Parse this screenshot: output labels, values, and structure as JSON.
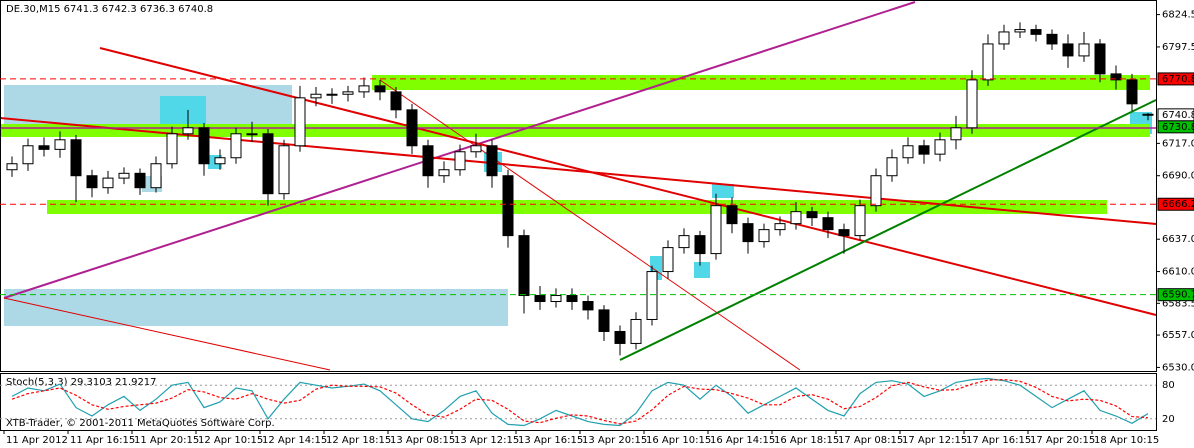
{
  "chart_data": {
    "type": "candlestick",
    "title": "DE.30,M15 6741.3 6742.3 6736.3 6740.8",
    "footer": "XTB-Trader, © 2001-2011 MetaQuotes Software Corp.",
    "open": [
      6695,
      6700,
      6715,
      6712,
      6720,
      6690,
      6680,
      6688,
      6692,
      6680,
      6700,
      6725,
      6730,
      6700,
      6705,
      6725,
      6725,
      6675,
      6715,
      6755,
      6758,
      6758,
      6760,
      6765,
      6760,
      6745,
      6715,
      6690,
      6695,
      6710,
      6715,
      6690,
      6640,
      6590,
      6585,
      6590,
      6585,
      6578,
      6560,
      6550,
      6570,
      6610,
      6630,
      6640,
      6625,
      6665,
      6650,
      6635,
      6645,
      6650,
      6660,
      6655,
      6645,
      6640,
      6665,
      6690,
      6705,
      6715,
      6708,
      6720,
      6730,
      6770,
      6800,
      6810,
      6812,
      6808,
      6800,
      6790,
      6800,
      6775,
      6770,
      6741.3
    ],
    "high": [
      6706,
      6721,
      6722,
      6727,
      6724,
      6695,
      6694,
      6697,
      6696,
      6706,
      6731,
      6745,
      6734,
      6712,
      6730,
      6735,
      6729,
      6720,
      6765,
      6764,
      6763,
      6765,
      6772,
      6770,
      6764,
      6750,
      6720,
      6702,
      6716,
      6725,
      6720,
      6695,
      6645,
      6598,
      6596,
      6596,
      6590,
      6582,
      6565,
      6576,
      6615,
      6636,
      6646,
      6644,
      6675,
      6672,
      6655,
      6650,
      6656,
      6668,
      6664,
      6660,
      6650,
      6670,
      6696,
      6712,
      6722,
      6720,
      6726,
      6740,
      6778,
      6808,
      6816,
      6818,
      6816,
      6812,
      6808,
      6810,
      6804,
      6782,
      6775,
      6742.3
    ],
    "low": [
      6689,
      6694,
      6706,
      6705,
      6668,
      6672,
      6675,
      6683,
      6674,
      6676,
      6696,
      6720,
      6690,
      6695,
      6700,
      6718,
      6665,
      6670,
      6710,
      6748,
      6750,
      6752,
      6755,
      6753,
      6738,
      6708,
      6680,
      6684,
      6690,
      6705,
      6680,
      6630,
      6575,
      6578,
      6580,
      6578,
      6570,
      6552,
      6540,
      6545,
      6565,
      6604,
      6625,
      6615,
      6620,
      6642,
      6625,
      6630,
      6640,
      6645,
      6648,
      6638,
      6625,
      6636,
      6660,
      6685,
      6700,
      6700,
      6702,
      6712,
      6725,
      6765,
      6795,
      6805,
      6802,
      6795,
      6780,
      6785,
      6768,
      6762,
      6744,
      6736.3
    ],
    "close": [
      6700,
      6715,
      6712,
      6720,
      6690,
      6680,
      6688,
      6692,
      6680,
      6700,
      6725,
      6730,
      6700,
      6705,
      6725,
      6725,
      6675,
      6715,
      6755,
      6758,
      6758,
      6760,
      6765,
      6760,
      6745,
      6715,
      6690,
      6695,
      6710,
      6715,
      6690,
      6640,
      6590,
      6585,
      6590,
      6585,
      6578,
      6560,
      6550,
      6570,
      6610,
      6630,
      6640,
      6625,
      6665,
      6650,
      6635,
      6645,
      6650,
      6660,
      6655,
      6645,
      6640,
      6665,
      6690,
      6705,
      6715,
      6708,
      6720,
      6730,
      6770,
      6800,
      6810,
      6812,
      6808,
      6800,
      6790,
      6800,
      6775,
      6770,
      6750,
      6740.8
    ],
    "ylim": [
      6527,
      6835
    ],
    "yticks": [
      6824.5,
      6797.5,
      {
        "value": 6717,
        "label": "6717.0"
      },
      {
        "value": 6690,
        "label": "6690.0"
      },
      {
        "value": 6637,
        "label": "6637.0"
      },
      {
        "value": 6610,
        "label": "6610.0"
      },
      6583.5,
      {
        "value": 6557,
        "label": "6557.0"
      },
      {
        "value": 6530,
        "label": "6530.0"
      }
    ],
    "xticks": [
      {
        "value": 0,
        "label": "11 Apr 2012"
      },
      {
        "value": 4,
        "label": "11 Apr 16:15"
      },
      {
        "value": 8,
        "label": "11 Apr 20:15"
      },
      {
        "value": 12,
        "label": "12 Apr 10:15"
      },
      {
        "value": 16,
        "label": "12 Apr 14:15"
      },
      {
        "value": 20,
        "label": "12 Apr 18:15"
      },
      {
        "value": 24,
        "label": "13 Apr 08:15"
      },
      {
        "value": 28,
        "label": "13 Apr 12:15"
      },
      {
        "value": 32,
        "label": "13 Apr 16:15"
      },
      {
        "value": 36,
        "label": "13 Apr 20:15"
      },
      {
        "value": 40,
        "label": "16 Apr 10:15"
      },
      {
        "value": 44,
        "label": "16 Apr 14:15"
      },
      {
        "value": 48,
        "label": "16 Apr 18:15"
      },
      {
        "value": 52,
        "label": "17 Apr 08:15"
      },
      {
        "value": 56,
        "label": "17 Apr 12:15"
      },
      {
        "value": 60,
        "label": "17 Apr 16:15"
      },
      {
        "value": 64,
        "label": "17 Apr 20:15"
      },
      {
        "value": 68,
        "label": "18 Apr 10:15"
      }
    ],
    "price_levels": [
      {
        "value": 6770.8,
        "color": "#ff0000",
        "line_style": "dashed"
      },
      {
        "value": 6740.8,
        "color": "#ffffff"
      },
      {
        "value": 6730.8,
        "color": "#00c000"
      },
      {
        "value": 6666.2,
        "color": "#ff0000",
        "line_style": "dashed"
      },
      {
        "value": 6590.7,
        "color": "#00c000",
        "line_style": "dashed"
      }
    ],
    "indicator": {
      "title": "Stoch(5,3,3) 29.3103 21.9217",
      "ylim": [
        0,
        100
      ],
      "yticks": [
        80,
        20
      ],
      "series": [
        {
          "name": "Main",
          "color": "#20a0b0",
          "values": [
            60,
            75,
            70,
            82,
            40,
            25,
            45,
            60,
            35,
            55,
            80,
            85,
            40,
            50,
            75,
            70,
            20,
            55,
            85,
            80,
            75,
            78,
            82,
            70,
            45,
            20,
            15,
            35,
            60,
            70,
            30,
            10,
            8,
            20,
            35,
            25,
            15,
            10,
            8,
            30,
            70,
            85,
            80,
            55,
            80,
            60,
            30,
            45,
            60,
            75,
            55,
            35,
            25,
            65,
            85,
            88,
            82,
            60,
            70,
            85,
            90,
            92,
            88,
            80,
            60,
            40,
            55,
            70,
            35,
            25,
            12,
            29.3103
          ]
        },
        {
          "name": "Signal",
          "color": "#ff0000",
          "line_style": "dashed",
          "values": [
            55,
            65,
            70,
            75,
            62,
            45,
            37,
            42,
            45,
            48,
            57,
            72,
            68,
            58,
            55,
            65,
            55,
            48,
            53,
            73,
            80,
            78,
            78,
            77,
            66,
            45,
            27,
            23,
            37,
            55,
            53,
            37,
            16,
            13,
            21,
            27,
            25,
            17,
            11,
            16,
            36,
            62,
            78,
            73,
            72,
            65,
            57,
            45,
            45,
            60,
            63,
            55,
            38,
            42,
            58,
            79,
            85,
            77,
            71,
            72,
            82,
            89,
            90,
            87,
            76,
            60,
            52,
            55,
            53,
            43,
            24,
            21.9217
          ]
        }
      ]
    }
  }
}
